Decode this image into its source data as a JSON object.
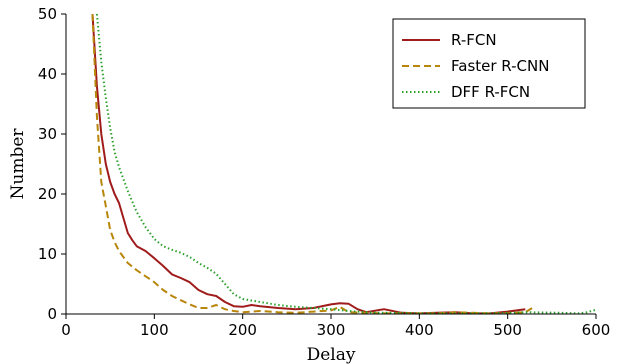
{
  "chart_data": {
    "type": "line",
    "xlabel": "Delay",
    "ylabel": "Number",
    "xlim": [
      0,
      600
    ],
    "ylim": [
      0,
      50
    ],
    "x_ticks": [
      "0",
      "100",
      "200",
      "300",
      "400",
      "500",
      "600"
    ],
    "y_ticks": [
      "0",
      "10",
      "20",
      "30",
      "40",
      "50"
    ],
    "grid": false,
    "legend_position": "top-right",
    "series": [
      {
        "name": "R-FCN",
        "color": "#a01c1c",
        "dash": "solid",
        "x": [
          30,
          35,
          40,
          45,
          50,
          55,
          60,
          65,
          70,
          75,
          80,
          90,
          100,
          110,
          120,
          130,
          140,
          150,
          160,
          170,
          180,
          190,
          200,
          210,
          220,
          240,
          260,
          280,
          300,
          310,
          320,
          330,
          340,
          360,
          380,
          400,
          420,
          440,
          450,
          460,
          480,
          500,
          520
        ],
        "y": [
          50,
          38,
          30,
          25,
          22,
          20,
          18.5,
          16,
          13.5,
          12.3,
          11.3,
          10.5,
          9.3,
          8,
          6.6,
          6,
          5.3,
          4,
          3.3,
          3,
          2,
          1.3,
          1.2,
          1.5,
          1.3,
          1,
          0.8,
          1,
          1.6,
          1.8,
          1.7,
          0.8,
          0.3,
          0.8,
          0.2,
          0.1,
          0.2,
          0.3,
          0.2,
          0.1,
          0.1,
          0.4,
          0.8
        ]
      },
      {
        "name": "Faster R-CNN",
        "color": "#b8860b",
        "dash": "dashed",
        "x": [
          30,
          35,
          40,
          45,
          50,
          55,
          60,
          70,
          80,
          90,
          100,
          110,
          120,
          130,
          140,
          150,
          160,
          170,
          180,
          190,
          200,
          220,
          240,
          260,
          280,
          300,
          310,
          320,
          340,
          360,
          380,
          400,
          420,
          440,
          460,
          480,
          500,
          520,
          530
        ],
        "y": [
          50,
          33,
          22,
          18,
          14,
          12,
          10.5,
          8.5,
          7.3,
          6.3,
          5.3,
          4,
          3,
          2.3,
          1.6,
          1,
          1,
          1.5,
          0.8,
          0.5,
          0.3,
          0.5,
          0.3,
          0.2,
          0.4,
          0.6,
          1.2,
          0.3,
          0.2,
          0.1,
          0.1,
          0.1,
          0.1,
          0.3,
          0.2,
          0.1,
          0.1,
          0.3,
          1.2
        ]
      },
      {
        "name": "DFF R-FCN",
        "color": "#2ca02c",
        "dash": "dotted",
        "x": [
          35,
          40,
          45,
          50,
          55,
          60,
          70,
          80,
          90,
          100,
          110,
          120,
          130,
          140,
          150,
          160,
          170,
          180,
          190,
          200,
          220,
          240,
          260,
          280,
          300,
          320,
          340,
          360,
          380,
          400,
          440,
          480,
          520,
          560,
          580,
          590,
          600
        ],
        "y": [
          50,
          42,
          36,
          31,
          27,
          24.5,
          20.5,
          17,
          14.5,
          12.5,
          11.3,
          10.7,
          10.2,
          9.5,
          8.5,
          7.7,
          6.7,
          5,
          3.3,
          2.5,
          2,
          1.5,
          1.2,
          1,
          0.8,
          0.5,
          0.3,
          0.2,
          0.2,
          0.1,
          0.1,
          0.1,
          0.3,
          0.2,
          0.1,
          0.3,
          0.7
        ]
      }
    ]
  }
}
